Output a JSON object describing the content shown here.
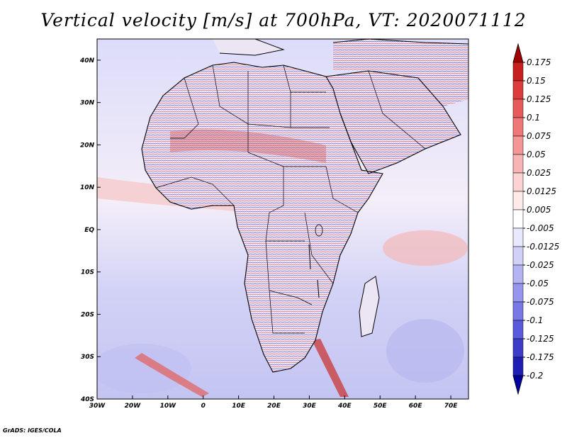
{
  "title": "Vertical velocity [m/s] at 700hPa, VT: 2020071112",
  "credit": "GrADS: IGES/COLA",
  "map": {
    "lon_range": [
      -30,
      75
    ],
    "lat_range": [
      -40,
      45
    ],
    "lon_ticks": [
      {
        "value": -30,
        "label": "30W"
      },
      {
        "value": -20,
        "label": "20W"
      },
      {
        "value": -10,
        "label": "10W"
      },
      {
        "value": 0,
        "label": "0"
      },
      {
        "value": 10,
        "label": "10E"
      },
      {
        "value": 20,
        "label": "20E"
      },
      {
        "value": 30,
        "label": "30E"
      },
      {
        "value": 40,
        "label": "40E"
      },
      {
        "value": 50,
        "label": "50E"
      },
      {
        "value": 60,
        "label": "60E"
      },
      {
        "value": 70,
        "label": "70E"
      }
    ],
    "lat_ticks": [
      {
        "value": 40,
        "label": "40N"
      },
      {
        "value": 30,
        "label": "30N"
      },
      {
        "value": 20,
        "label": "20N"
      },
      {
        "value": 10,
        "label": "10N"
      },
      {
        "value": 0,
        "label": "EQ"
      },
      {
        "value": -10,
        "label": "10S"
      },
      {
        "value": -20,
        "label": "20S"
      },
      {
        "value": -30,
        "label": "30S"
      },
      {
        "value": -40,
        "label": "40S"
      }
    ]
  },
  "colorbar": {
    "labels": [
      "0.175",
      "0.15",
      "0.125",
      "0.1",
      "0.075",
      "0.05",
      "0.025",
      "0.0125",
      "0.005",
      "-0.005",
      "-0.0125",
      "-0.025",
      "-0.05",
      "-0.075",
      "-0.1",
      "-0.125",
      "-0.175",
      "-0.2"
    ],
    "colors": [
      "#a00000",
      "#c81e1e",
      "#dc3c3c",
      "#e65a5a",
      "#ee7878",
      "#f49696",
      "#f8b4b4",
      "#fcd2d2",
      "#ffeaea",
      "#ffffff",
      "#e8e8ff",
      "#d0d0f8",
      "#b4b4f4",
      "#9696ee",
      "#7878e6",
      "#5a5adc",
      "#3c3cc8",
      "#1e1eb4",
      "#0000a0"
    ]
  }
}
